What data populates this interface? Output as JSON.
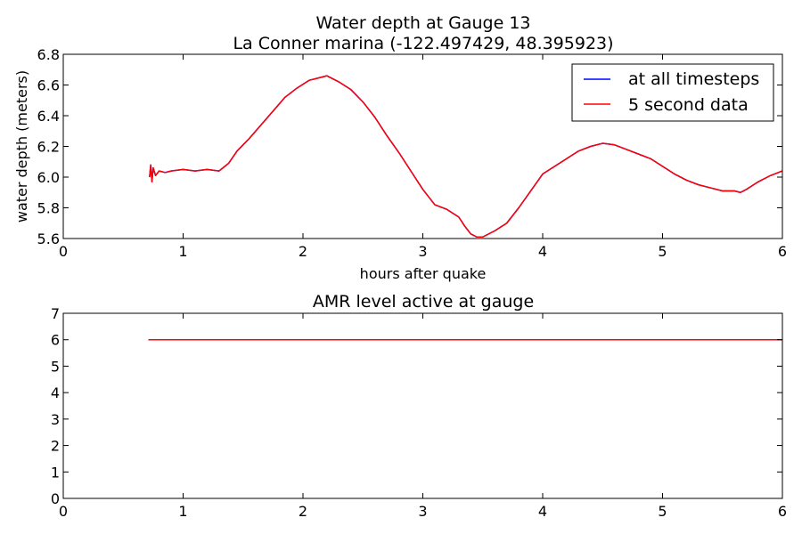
{
  "chart_data": [
    {
      "type": "line",
      "title": "Water depth at Gauge 13",
      "subtitle": "La Conner marina  (-122.497429, 48.395923)",
      "xlabel": "hours after quake",
      "ylabel": "water depth (meters)",
      "xlim": [
        0,
        6
      ],
      "ylim": [
        5.6,
        6.8
      ],
      "xticks": [
        "0",
        "1",
        "2",
        "3",
        "4",
        "5",
        "6"
      ],
      "yticks": [
        "5.6",
        "5.8",
        "6.0",
        "6.2",
        "6.4",
        "6.6",
        "6.8"
      ],
      "grid": false,
      "legend_position": "top-right",
      "series": [
        {
          "name": "at all timesteps",
          "color": "#0000ff",
          "x": [
            0.72,
            0.73,
            0.74,
            0.75,
            0.77,
            0.8,
            0.85,
            0.9,
            1.0,
            1.1,
            1.2,
            1.3,
            1.38,
            1.45,
            1.55,
            1.65,
            1.75,
            1.85,
            1.95,
            2.05,
            2.15,
            2.2,
            2.3,
            2.4,
            2.5,
            2.6,
            2.7,
            2.8,
            2.9,
            3.0,
            3.05,
            3.1,
            3.2,
            3.3,
            3.35,
            3.4,
            3.45,
            3.5,
            3.6,
            3.7,
            3.75,
            3.8,
            3.9,
            4.0,
            4.1,
            4.2,
            4.3,
            4.4,
            4.5,
            4.6,
            4.7,
            4.8,
            4.9,
            5.0,
            5.1,
            5.2,
            5.3,
            5.4,
            5.5,
            5.6,
            5.65,
            5.7,
            5.8,
            5.9,
            6.0
          ],
          "y": [
            6.0,
            6.08,
            5.97,
            6.06,
            6.01,
            6.04,
            6.03,
            6.04,
            6.05,
            6.04,
            6.05,
            6.04,
            6.09,
            6.17,
            6.25,
            6.34,
            6.43,
            6.52,
            6.58,
            6.63,
            6.65,
            6.66,
            6.62,
            6.57,
            6.49,
            6.39,
            6.27,
            6.16,
            6.04,
            5.92,
            5.87,
            5.82,
            5.79,
            5.74,
            5.68,
            5.63,
            5.61,
            5.61,
            5.65,
            5.7,
            5.75,
            5.8,
            5.91,
            6.02,
            6.07,
            6.12,
            6.17,
            6.2,
            6.22,
            6.21,
            6.18,
            6.15,
            6.12,
            6.07,
            6.02,
            5.98,
            5.95,
            5.93,
            5.91,
            5.91,
            5.9,
            5.92,
            5.97,
            6.01,
            6.04
          ]
        },
        {
          "name": "5 second data",
          "color": "#ff0000",
          "x": [
            0.72,
            0.73,
            0.74,
            0.75,
            0.77,
            0.8,
            0.85,
            0.9,
            1.0,
            1.1,
            1.2,
            1.3,
            1.38,
            1.45,
            1.55,
            1.65,
            1.75,
            1.85,
            1.95,
            2.05,
            2.15,
            2.2,
            2.3,
            2.4,
            2.5,
            2.6,
            2.7,
            2.8,
            2.9,
            3.0,
            3.05,
            3.1,
            3.2,
            3.3,
            3.35,
            3.4,
            3.45,
            3.5,
            3.6,
            3.7,
            3.75,
            3.8,
            3.9,
            4.0,
            4.1,
            4.2,
            4.3,
            4.4,
            4.5,
            4.6,
            4.7,
            4.8,
            4.9,
            5.0,
            5.1,
            5.2,
            5.3,
            5.4,
            5.5,
            5.6,
            5.65,
            5.7,
            5.8,
            5.9,
            6.0
          ],
          "y": [
            6.0,
            6.08,
            5.97,
            6.06,
            6.01,
            6.04,
            6.03,
            6.04,
            6.05,
            6.04,
            6.05,
            6.04,
            6.09,
            6.17,
            6.25,
            6.34,
            6.43,
            6.52,
            6.58,
            6.63,
            6.65,
            6.66,
            6.62,
            6.57,
            6.49,
            6.39,
            6.27,
            6.16,
            6.04,
            5.92,
            5.87,
            5.82,
            5.79,
            5.74,
            5.68,
            5.63,
            5.61,
            5.61,
            5.65,
            5.7,
            5.75,
            5.8,
            5.91,
            6.02,
            6.07,
            6.12,
            6.17,
            6.2,
            6.22,
            6.21,
            6.18,
            6.15,
            6.12,
            6.07,
            6.02,
            5.98,
            5.95,
            5.93,
            5.91,
            5.91,
            5.9,
            5.92,
            5.97,
            6.01,
            6.04
          ]
        }
      ]
    },
    {
      "type": "line",
      "title": "AMR level active at gauge",
      "xlabel": "",
      "ylabel": "",
      "xlim": [
        0,
        6
      ],
      "ylim": [
        0,
        7
      ],
      "xticks": [
        "0",
        "1",
        "2",
        "3",
        "4",
        "5",
        "6"
      ],
      "yticks": [
        "0",
        "1",
        "2",
        "3",
        "4",
        "5",
        "6",
        "7"
      ],
      "grid": false,
      "series": [
        {
          "color": "#ff0000",
          "x": [
            0.71,
            6.0
          ],
          "y": [
            6,
            6
          ]
        }
      ]
    }
  ]
}
